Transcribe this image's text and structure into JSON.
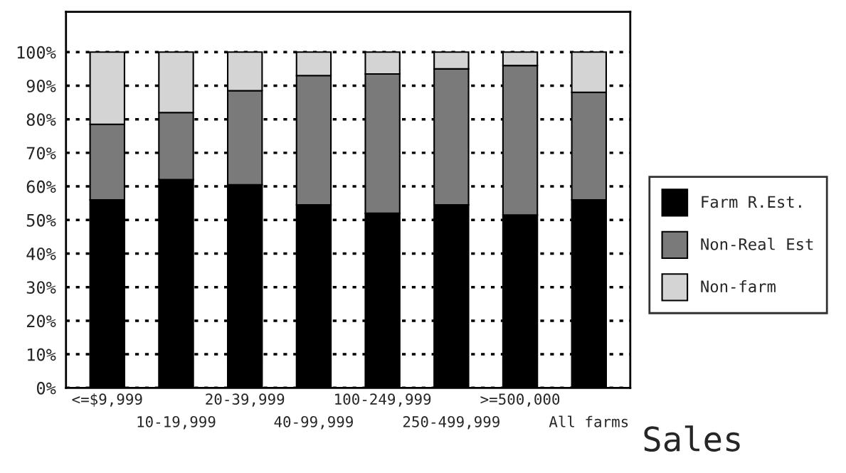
{
  "chart_data": {
    "type": "bar",
    "stacked": true,
    "xlabel": "Sales",
    "categories": [
      "<=$9,999",
      "10-19,999",
      "20-39,999",
      "40-99,999",
      "100-249,999",
      "250-499,999",
      ">=500,000",
      "All farms"
    ],
    "series": [
      {
        "name": "Farm R.Est.",
        "color": "#000000",
        "values": [
          56,
          62,
          60.5,
          54.5,
          52,
          54.5,
          51.5,
          56
        ]
      },
      {
        "name": "Non-Real Est",
        "color": "#7a7a7a",
        "values": [
          22.5,
          20,
          28,
          38.5,
          41.5,
          40.5,
          44.5,
          32
        ]
      },
      {
        "name": "Non-farm",
        "color": "#d4d4d4",
        "values": [
          21.5,
          18,
          11.5,
          7,
          6.5,
          5,
          4,
          12
        ]
      }
    ],
    "ylim": [
      0,
      112
    ],
    "yticks": [
      {
        "value": 0,
        "label": "0%"
      },
      {
        "value": 10,
        "label": "10%"
      },
      {
        "value": 20,
        "label": "20%"
      },
      {
        "value": 30,
        "label": "30%"
      },
      {
        "value": 40,
        "label": "40%"
      },
      {
        "value": 50,
        "label": "50%"
      },
      {
        "value": 60,
        "label": "60%"
      },
      {
        "value": 70,
        "label": "70%"
      },
      {
        "value": 80,
        "label": "80%"
      },
      {
        "value": 90,
        "label": "90%"
      },
      {
        "value": 100,
        "label": "100%"
      }
    ],
    "grid": "y",
    "legend": "right"
  }
}
